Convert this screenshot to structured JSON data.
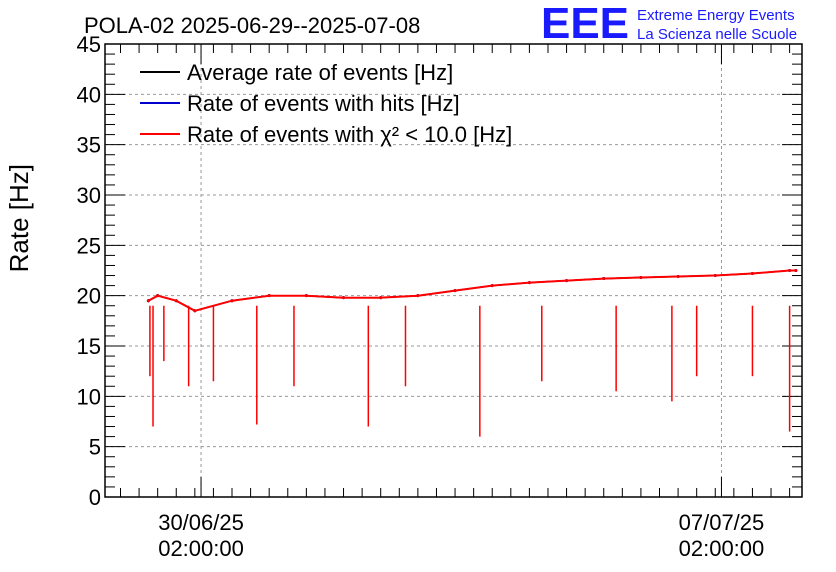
{
  "header": {
    "title": "POLA-02 2025-06-29--2025-07-08",
    "logo_text": "EEE",
    "logo_line1": "Extreme Energy Events",
    "logo_line2": "La Scienza nelle Scuole",
    "logo_color": "#1a1aff"
  },
  "chart_data": {
    "type": "line",
    "title": "POLA-02 2025-06-29--2025-07-08",
    "ylabel": "Rate [Hz]",
    "xlabel": "",
    "ylim": [
      0,
      45
    ],
    "yticks": [
      0,
      5,
      10,
      15,
      20,
      25,
      30,
      35,
      40,
      45
    ],
    "xlim": [
      "2025-06-28 19:00",
      "2025-07-08 04:00"
    ],
    "xticks": [
      {
        "date": "30/06/25",
        "time": "02:00:00",
        "value": "2025-06-30 02:00"
      },
      {
        "date": "07/07/25",
        "time": "02:00:00",
        "value": "2025-07-07 02:00"
      }
    ],
    "grid": true,
    "legend_position": "top-left",
    "series": [
      {
        "name": "Average rate of events [Hz]",
        "color": "#000000",
        "x": [
          "2025-06-29 09:00",
          "2025-06-29 12:00",
          "2025-06-29 18:00",
          "2025-06-30 00:00",
          "2025-06-30 12:00",
          "2025-07-01 00:00",
          "2025-07-01 12:00",
          "2025-07-02 00:00",
          "2025-07-02 12:00",
          "2025-07-03 00:00",
          "2025-07-03 12:00",
          "2025-07-04 00:00",
          "2025-07-04 12:00",
          "2025-07-05 00:00",
          "2025-07-05 12:00",
          "2025-07-06 00:00",
          "2025-07-06 12:00",
          "2025-07-07 00:00",
          "2025-07-07 12:00",
          "2025-07-08 00:00",
          "2025-07-08 02:00"
        ],
        "values": [
          19.5,
          20.0,
          19.5,
          18.5,
          19.5,
          20.0,
          20.0,
          19.8,
          19.8,
          20.0,
          20.5,
          21.0,
          21.3,
          21.5,
          21.7,
          21.8,
          21.9,
          22.0,
          22.2,
          22.5,
          22.5
        ]
      },
      {
        "name": "Rate of events with hits [Hz]",
        "color": "#0000cc",
        "x": [
          "2025-06-29 09:00",
          "2025-06-29 12:00",
          "2025-06-29 18:00",
          "2025-06-30 00:00",
          "2025-06-30 12:00",
          "2025-07-01 00:00",
          "2025-07-01 12:00",
          "2025-07-02 00:00",
          "2025-07-02 12:00",
          "2025-07-03 00:00",
          "2025-07-03 12:00",
          "2025-07-04 00:00",
          "2025-07-04 12:00",
          "2025-07-05 00:00",
          "2025-07-05 12:00",
          "2025-07-06 00:00",
          "2025-07-06 12:00",
          "2025-07-07 00:00",
          "2025-07-07 12:00",
          "2025-07-08 00:00",
          "2025-07-08 02:00"
        ],
        "values": [
          19.5,
          20.0,
          19.5,
          18.5,
          19.5,
          20.0,
          20.0,
          19.8,
          19.8,
          20.0,
          20.5,
          21.0,
          21.3,
          21.5,
          21.7,
          21.8,
          21.9,
          22.0,
          22.2,
          22.5,
          22.5
        ]
      },
      {
        "name": "Rate of events with χ² < 10.0 [Hz]",
        "color": "#ff0000",
        "x": [
          "2025-06-29 09:00",
          "2025-06-29 12:00",
          "2025-06-29 18:00",
          "2025-06-30 00:00",
          "2025-06-30 12:00",
          "2025-07-01 00:00",
          "2025-07-01 12:00",
          "2025-07-02 00:00",
          "2025-07-02 12:00",
          "2025-07-03 00:00",
          "2025-07-03 12:00",
          "2025-07-04 00:00",
          "2025-07-04 12:00",
          "2025-07-05 00:00",
          "2025-07-05 12:00",
          "2025-07-06 00:00",
          "2025-07-06 12:00",
          "2025-07-07 00:00",
          "2025-07-07 12:00",
          "2025-07-08 00:00",
          "2025-07-08 02:00"
        ],
        "values": [
          19.5,
          20.0,
          19.5,
          18.5,
          19.5,
          20.0,
          20.0,
          19.8,
          19.8,
          20.0,
          20.5,
          21.0,
          21.3,
          21.5,
          21.7,
          21.8,
          21.9,
          22.0,
          22.2,
          22.5,
          22.5
        ],
        "dips": [
          {
            "x": "2025-06-29 09:30",
            "value": 12.0
          },
          {
            "x": "2025-06-29 10:30",
            "value": 7.0
          },
          {
            "x": "2025-06-29 14:00",
            "value": 13.5
          },
          {
            "x": "2025-06-29 22:00",
            "value": 11.0
          },
          {
            "x": "2025-06-30 06:00",
            "value": 11.5
          },
          {
            "x": "2025-06-30 20:00",
            "value": 7.2
          },
          {
            "x": "2025-07-01 08:00",
            "value": 11.0
          },
          {
            "x": "2025-07-02 08:00",
            "value": 7.0
          },
          {
            "x": "2025-07-02 20:00",
            "value": 11.0
          },
          {
            "x": "2025-07-03 20:00",
            "value": 6.0
          },
          {
            "x": "2025-07-04 16:00",
            "value": 11.5
          },
          {
            "x": "2025-07-05 16:00",
            "value": 10.5
          },
          {
            "x": "2025-07-06 10:00",
            "value": 9.5
          },
          {
            "x": "2025-07-06 18:00",
            "value": 12.0
          },
          {
            "x": "2025-07-07 12:00",
            "value": 12.0
          },
          {
            "x": "2025-07-08 00:00",
            "value": 6.5
          }
        ]
      }
    ]
  }
}
